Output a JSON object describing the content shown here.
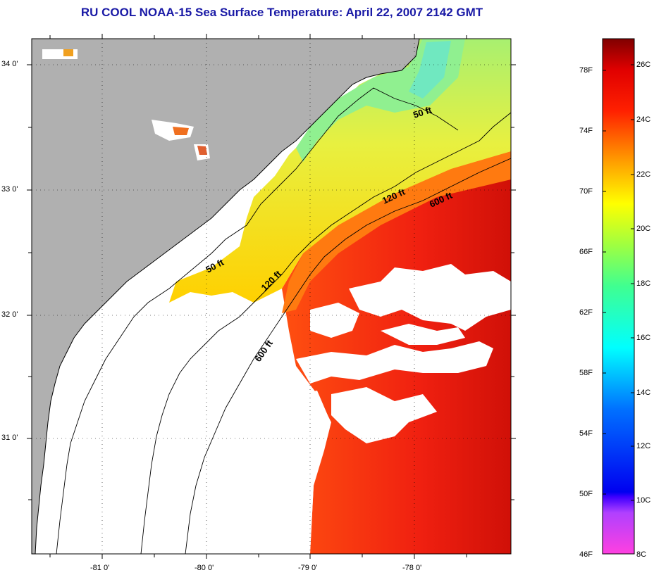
{
  "title": "RU COOL  NOAA-15  Sea Surface Temperature:  April 22, 2007 2142 GMT",
  "latitude_labels": [
    "34 0'",
    "33 0'",
    "32 0'",
    "31 0'"
  ],
  "longitude_labels": [
    "-81 0'",
    "-80 0'",
    "-79 0'",
    "-78 0'"
  ],
  "contour_labels": [
    "50 ft",
    "120 ft",
    "600 ft",
    "50 ft",
    "120 ft",
    "600 ft"
  ],
  "colorbar": {
    "fahrenheit": [
      "78F",
      "74F",
      "70F",
      "66F",
      "62F",
      "58F",
      "54F",
      "50F",
      "46F"
    ],
    "celsius": [
      "26C",
      "24C",
      "22C",
      "20C",
      "18C",
      "16C",
      "14C",
      "12C",
      "10C",
      "8C"
    ]
  },
  "colors": {
    "land": "#b0b0b0",
    "cloud": "#ffffff",
    "title": "#1a1aa6"
  }
}
